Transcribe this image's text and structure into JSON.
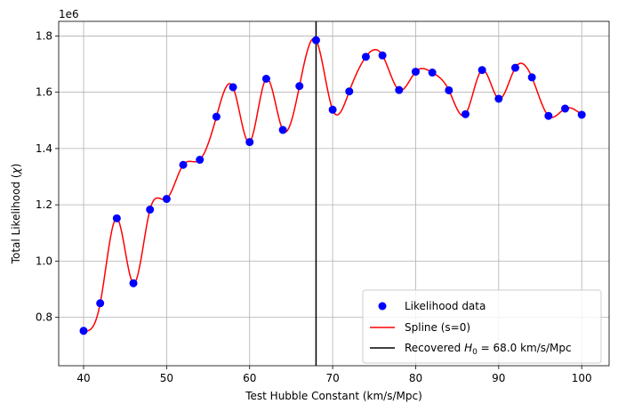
{
  "chart_data": {
    "type": "scatter",
    "xlabel": "Test Hubble Constant (km/s/Mpc)",
    "ylabel_prefix": "Total Likelihood (",
    "ylabel_symbol": "χ",
    "ylabel_suffix": ")",
    "y_offset_text": "1e6",
    "y_scale": 1000000,
    "xlim": [
      37,
      103.3
    ],
    "ylim": [
      0.628,
      1.852
    ],
    "x_ticks": [
      40,
      50,
      60,
      70,
      80,
      90,
      100
    ],
    "x_tick_labels": [
      "40",
      "50",
      "60",
      "70",
      "80",
      "90",
      "100"
    ],
    "y_ticks": [
      0.8,
      1.0,
      1.2,
      1.4,
      1.6,
      1.8
    ],
    "y_tick_labels": [
      "0.8",
      "1.0",
      "1.2",
      "1.4",
      "1.6",
      "1.8"
    ],
    "grid": true,
    "legend_position": "lower-right",
    "series": [
      {
        "name": "Likelihood data",
        "kind": "scatter",
        "color": "#0000ff",
        "x": [
          40,
          42,
          44,
          46,
          48,
          50,
          52,
          54,
          56,
          58,
          60,
          62,
          64,
          66,
          68,
          70,
          72,
          74,
          76,
          78,
          80,
          82,
          84,
          86,
          88,
          90,
          92,
          94,
          96,
          98,
          100
        ],
        "y": [
          0.752,
          0.85,
          1.152,
          0.921,
          1.183,
          1.221,
          1.342,
          1.36,
          1.513,
          1.618,
          1.423,
          1.648,
          1.466,
          1.622,
          1.785,
          1.538,
          1.603,
          1.726,
          1.731,
          1.608,
          1.673,
          1.67,
          1.607,
          1.522,
          1.679,
          1.577,
          1.687,
          1.653,
          1.516,
          1.542,
          1.52
        ]
      },
      {
        "name": "Spline (s=0)",
        "kind": "line",
        "color": "#ff0000"
      },
      {
        "name_prefix": "Recovered ",
        "name_symbol": "H",
        "name_subscript": "0",
        "name_suffix": " = 68.0 km/s/Mpc",
        "kind": "vline",
        "color": "#000000",
        "x": 68.0
      }
    ]
  }
}
